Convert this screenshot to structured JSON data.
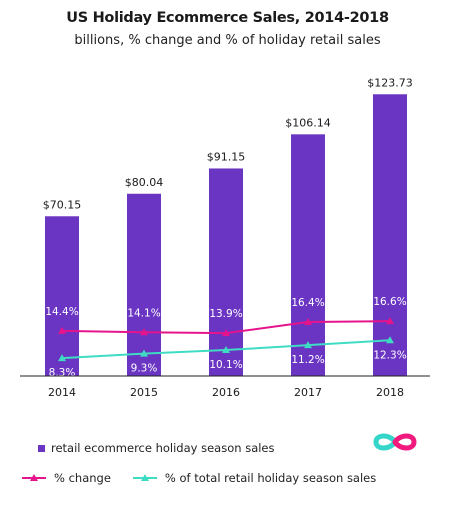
{
  "title": "US Holiday Ecommerce Sales, 2014-2018",
  "subtitle": "billions, % change and % of holiday retail sales",
  "colors": {
    "bar": "#6a35c2",
    "change_line": "#e5148c",
    "share_line": "#3fdcc4",
    "logo_pink": "#f0197d",
    "logo_teal": "#35d6c9"
  },
  "chart_data": {
    "type": "bar",
    "categories": [
      "2014",
      "2015",
      "2016",
      "2017",
      "2018"
    ],
    "bar_series": {
      "name": "retail ecommerce holiday season sales",
      "values": [
        70.15,
        80.04,
        91.15,
        106.14,
        123.73
      ],
      "labels": [
        "$70.15",
        "$80.04",
        "$91.15",
        "$106.14",
        "$123.73"
      ]
    },
    "line_series": [
      {
        "name": "% change",
        "values": [
          14.4,
          14.1,
          13.9,
          16.4,
          16.6
        ],
        "labels": [
          "14.4%",
          "14.1%",
          "13.9%",
          "16.4%",
          "16.6%"
        ]
      },
      {
        "name": "% of total retail holiday season sales",
        "values": [
          8.3,
          9.3,
          10.1,
          11.2,
          12.3
        ],
        "labels": [
          "8.3%",
          "9.3%",
          "10.1%",
          "11.2%",
          "12.3%"
        ]
      }
    ],
    "ylim": [
      0,
      130
    ],
    "grid": false,
    "legend_position": "bottom"
  },
  "logo_icon": "infinity-logo-icon"
}
